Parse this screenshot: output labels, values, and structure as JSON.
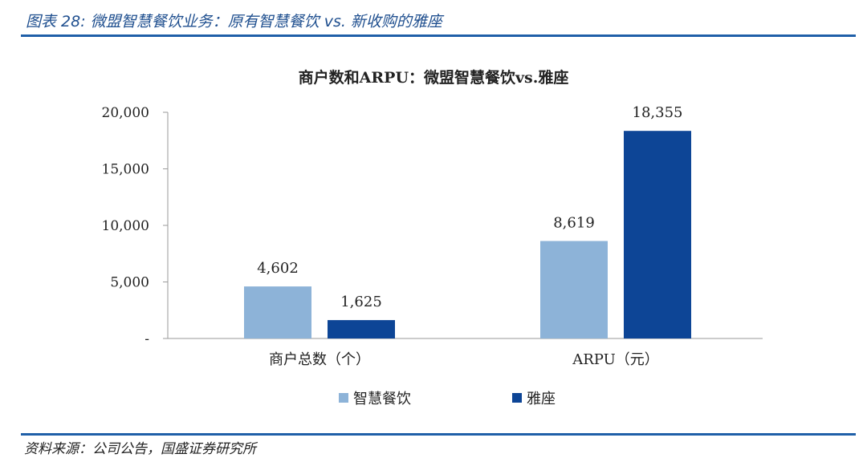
{
  "figure": {
    "caption": "图表 28: 微盟智慧餐饮业务：原有智慧餐饮 vs. 新收购的雅座",
    "source": "资料来源：公司公告，国盛证券研究所"
  },
  "chart_data": {
    "type": "bar",
    "title": "商户数和ARPU：微盟智慧餐饮vs.雅座",
    "categories": [
      "商户总数（个）",
      "ARPU（元）"
    ],
    "series": [
      {
        "name": "智慧餐饮",
        "values": [
          4602,
          8619
        ],
        "color": "#8db3d8"
      },
      {
        "name": "雅座",
        "values": [
          1625,
          18355
        ],
        "color": "#0d4596"
      }
    ],
    "data_labels": [
      [
        "4,602",
        "8,619"
      ],
      [
        "1,625",
        "18,355"
      ]
    ],
    "y_ticks": [
      0,
      5000,
      10000,
      15000,
      20000
    ],
    "y_tick_labels": [
      "-",
      "5,000",
      "10,000",
      "15,000",
      "20,000"
    ],
    "ylim": [
      0,
      20000
    ],
    "xlabel": "",
    "ylabel": "",
    "grid": false,
    "legend_position": "bottom"
  }
}
